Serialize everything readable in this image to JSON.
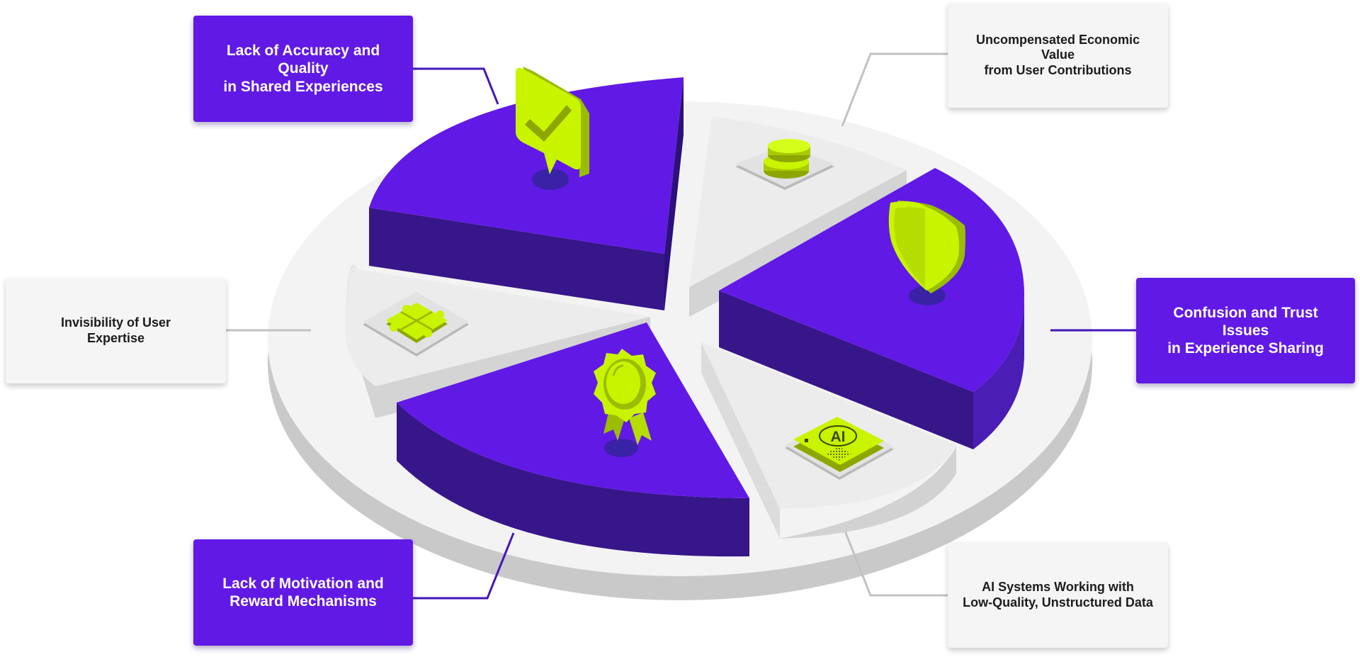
{
  "colors": {
    "primary_purple": "#6119e6",
    "dark_purple": "#37168a",
    "lime": "#c8f400",
    "light_grey": "#f5f5f5",
    "platform_grey": "#d0d0d0"
  },
  "segments": [
    {
      "id": "accuracy",
      "label": "Lack of Accuracy and Quality\nin Shared Experiences",
      "style": "purple",
      "icon": "checkmark-badge-icon"
    },
    {
      "id": "economic",
      "label": "Uncompensated Economic Value\nfrom User Contributions",
      "style": "grey",
      "icon": "coins-icon"
    },
    {
      "id": "trust",
      "label": "Confusion and Trust Issues\nin Experience Sharing",
      "style": "purple",
      "icon": "shield-icon"
    },
    {
      "id": "ai-data",
      "label": "AI Systems Working with\nLow-Quality, Unstructured Data",
      "style": "grey",
      "icon": "ai-chip-icon"
    },
    {
      "id": "motivation",
      "label": "Lack of Motivation and\nReward Mechanisms",
      "style": "purple",
      "icon": "award-ribbon-icon"
    },
    {
      "id": "expertise",
      "label": "Invisibility of User\nExpertise",
      "style": "grey",
      "icon": "puzzle-icon"
    }
  ],
  "chip_text": "AI"
}
